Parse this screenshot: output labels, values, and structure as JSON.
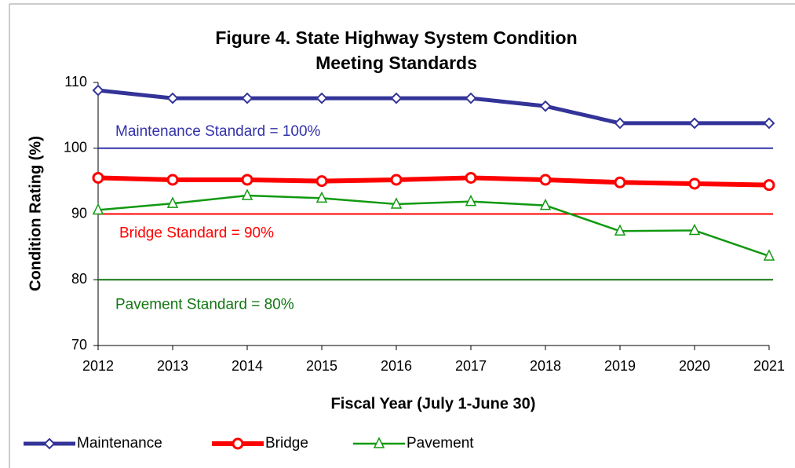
{
  "chart_data": {
    "type": "line",
    "title": "Figure 4. State Highway System Condition",
    "subtitle": "Meeting Standards",
    "y_label": "Condition Rating (%)",
    "x_label": "Fiscal Year (July 1-June 30)",
    "categories": [
      "2012",
      "2013",
      "2014",
      "2015",
      "2016",
      "2017",
      "2018",
      "2019",
      "2020",
      "2021"
    ],
    "series": [
      {
        "name": "Maintenance",
        "color": "#333399",
        "marker": "diamond",
        "values": [
          108.8,
          107.6,
          107.6,
          107.6,
          107.6,
          107.6,
          106.4,
          103.8,
          103.8,
          103.8
        ]
      },
      {
        "name": "Bridge",
        "color": "#ff0000",
        "marker": "circle",
        "values": [
          95.5,
          95.2,
          95.2,
          95.0,
          95.2,
          95.5,
          95.2,
          94.8,
          94.6,
          94.4
        ]
      },
      {
        "name": "Pavement",
        "color": "#119911",
        "marker": "triangle",
        "values": [
          90.6,
          91.6,
          92.8,
          92.4,
          91.5,
          91.9,
          91.3,
          87.4,
          87.5,
          83.6
        ]
      }
    ],
    "reference_lines": [
      {
        "value": 100,
        "label": "Maintenance Standard = 100%",
        "color": "#3333aa"
      },
      {
        "value": 90,
        "label": "Bridge Standard = 90%",
        "color": "#ff0000"
      },
      {
        "value": 80,
        "label": "Pavement Standard = 80%",
        "color": "#117711"
      }
    ],
    "ylim": [
      70,
      110
    ],
    "yticks": [
      70,
      80,
      90,
      100,
      110
    ],
    "grid": false,
    "legend": "bottom"
  }
}
